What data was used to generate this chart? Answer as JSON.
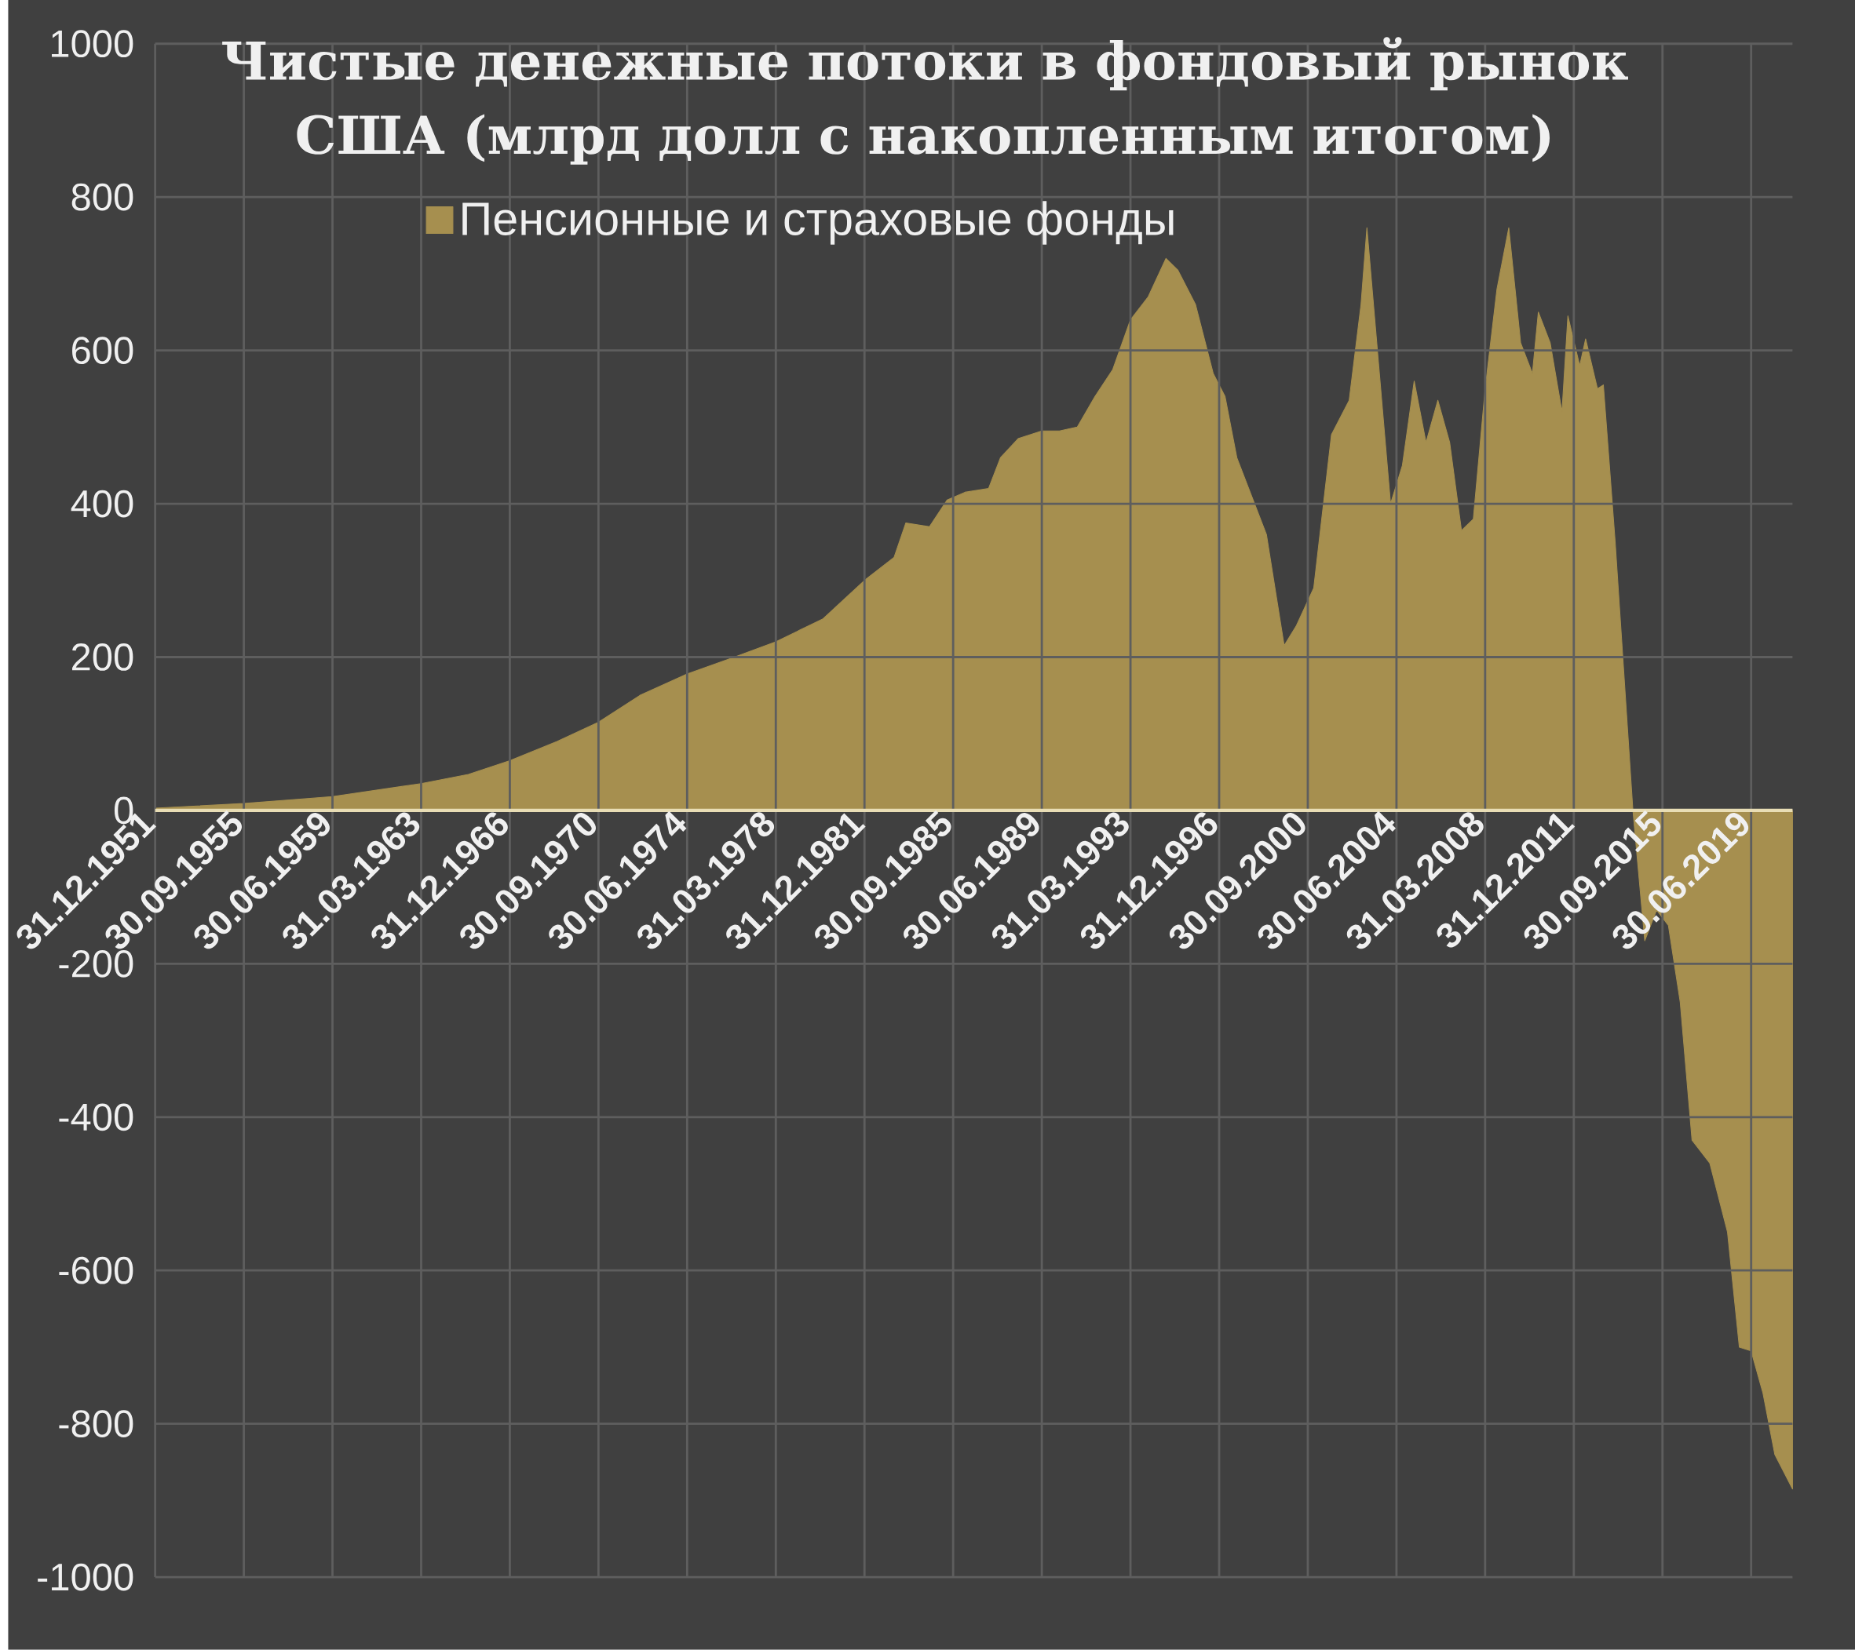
{
  "chart_data": {
    "type": "area",
    "title": "Чистые денежные потоки в фондовый рынок США (млрд долл с накопленным итогом)",
    "x": [
      "1951-12-31",
      "1955-09-30",
      "1959-06-30",
      "1963-03-31",
      "1965-03-31",
      "1966-12-31",
      "1968-12-31",
      "1970-09-30",
      "1972-06-30",
      "1974-06-30",
      "1976-06-30",
      "1978-03-31",
      "1980-03-31",
      "1981-12-31",
      "1983-03-31",
      "1983-09-30",
      "1984-09-30",
      "1985-06-30",
      "1986-03-31",
      "1987-03-31",
      "1987-09-30",
      "1988-06-30",
      "1989-06-30",
      "1990-03-31",
      "1990-12-31",
      "1991-09-30",
      "1992-06-30",
      "1993-03-31",
      "1993-12-31",
      "1994-09-30",
      "1995-03-31",
      "1995-12-31",
      "1996-09-30",
      "1997-03-31",
      "1997-09-30",
      "1998-12-31",
      "1999-09-30",
      "2000-03-31",
      "2000-12-31",
      "2001-09-30",
      "2002-06-30",
      "2002-12-31",
      "2003-03-31",
      "2003-09-30",
      "2004-03-31",
      "2004-09-30",
      "2005-03-31",
      "2005-09-30",
      "2006-03-31",
      "2006-09-30",
      "2007-03-31",
      "2007-09-30",
      "2008-03-31",
      "2008-09-30",
      "2009-03-31",
      "2009-09-30",
      "2010-03-31",
      "2010-06-30",
      "2010-12-31",
      "2011-06-30",
      "2011-09-30",
      "2012-03-31",
      "2012-06-30",
      "2012-12-31",
      "2013-03-31",
      "2013-09-30",
      "2014-06-30",
      "2014-12-31",
      "2015-06-30",
      "2015-12-31",
      "2016-06-30",
      "2016-12-31",
      "2017-09-30",
      "2018-06-30",
      "2018-12-31",
      "2019-06-30",
      "2019-12-31",
      "2020-06-30",
      "2021-03-31"
    ],
    "series": [
      {
        "name": "Пенсионные и страховые фонды",
        "color": "#a68f4f",
        "values": [
          3,
          9,
          18,
          35,
          47,
          65,
          90,
          115,
          150,
          178,
          200,
          220,
          250,
          300,
          330,
          375,
          370,
          405,
          415,
          420,
          460,
          485,
          495,
          495,
          500,
          540,
          575,
          640,
          670,
          720,
          705,
          660,
          570,
          540,
          460,
          360,
          215,
          240,
          290,
          490,
          535,
          660,
          760,
          580,
          400,
          450,
          560,
          480,
          535,
          480,
          365,
          380,
          550,
          680,
          760,
          610,
          570,
          650,
          610,
          520,
          645,
          580,
          615,
          550,
          555,
          350,
          0,
          -170,
          -130,
          -150,
          -250,
          -430,
          -460,
          -550,
          -700,
          -705,
          -760,
          -840,
          -885
        ]
      }
    ],
    "xlim": [
      "1951-12-31",
      "2021-03-31"
    ],
    "xticks": [
      {
        "value": "1951-12-31",
        "label": "31.12.1951"
      },
      {
        "value": "1955-09-30",
        "label": "30.09.1955"
      },
      {
        "value": "1959-06-30",
        "label": "30.06.1959"
      },
      {
        "value": "1963-03-31",
        "label": "31.03.1963"
      },
      {
        "value": "1966-12-31",
        "label": "31.12.1966"
      },
      {
        "value": "1970-09-30",
        "label": "30.09.1970"
      },
      {
        "value": "1974-06-30",
        "label": "30.06.1974"
      },
      {
        "value": "1978-03-31",
        "label": "31.03.1978"
      },
      {
        "value": "1981-12-31",
        "label": "31.12.1981"
      },
      {
        "value": "1985-09-30",
        "label": "30.09.1985"
      },
      {
        "value": "1989-06-30",
        "label": "30.06.1989"
      },
      {
        "value": "1993-03-31",
        "label": "31.03.1993"
      },
      {
        "value": "1996-12-31",
        "label": "31.12.1996"
      },
      {
        "value": "2000-09-30",
        "label": "30.09.2000"
      },
      {
        "value": "2004-06-30",
        "label": "30.06.2004"
      },
      {
        "value": "2008-03-31",
        "label": "31.03.2008"
      },
      {
        "value": "2011-12-31",
        "label": "31.12.2011"
      },
      {
        "value": "2015-09-30",
        "label": "30.09.2015"
      },
      {
        "value": "2019-06-30",
        "label": "30.06.2019"
      }
    ],
    "ylim": [
      -1000,
      1000
    ],
    "yticks": [
      -1000,
      -800,
      -600,
      -400,
      -200,
      0,
      200,
      400,
      600,
      800,
      1000
    ],
    "grid": true,
    "legend": "top left"
  }
}
